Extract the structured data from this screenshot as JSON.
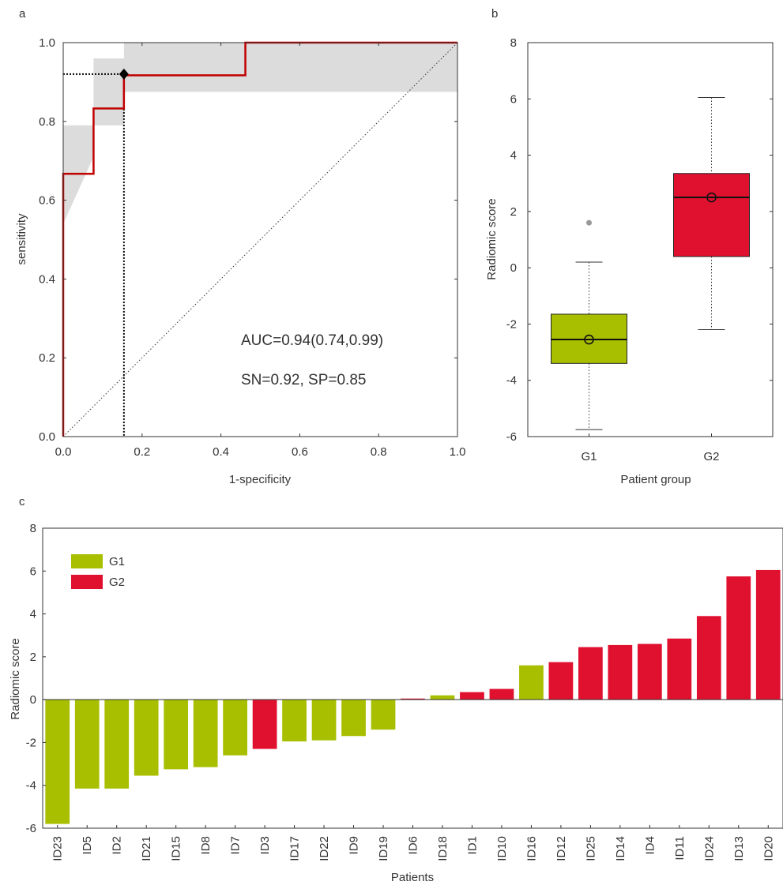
{
  "panel_labels": {
    "a": "a",
    "b": "b",
    "c": "c"
  },
  "colors": {
    "G1": "#a8bf00",
    "G2": "#e0102f",
    "roc": "#c00000",
    "ci_band": "#dcdcdc",
    "outlier": "#999999"
  },
  "chart_data": [
    {
      "type": "line",
      "panel": "a",
      "xlabel": "1-specificity",
      "ylabel": "sensitivity",
      "xlim": [
        0,
        1
      ],
      "ylim": [
        0,
        1
      ],
      "xticks": [
        "0.0",
        "0.2",
        "0.4",
        "0.6",
        "0.8",
        "1.0"
      ],
      "yticks": [
        "0.0",
        "0.2",
        "0.4",
        "0.6",
        "0.8",
        "1.0"
      ],
      "roc_curve": {
        "x": [
          0,
          0,
          0.077,
          0.077,
          0.154,
          0.154,
          0.462,
          0.462,
          1.0
        ],
        "y": [
          0,
          0.667,
          0.667,
          0.833,
          0.833,
          0.917,
          0.917,
          1.0,
          1.0
        ]
      },
      "ci_band": {
        "x": [
          0,
          0,
          0.077,
          0.077,
          0.154,
          0.154,
          0.154,
          0.462,
          0.462,
          1.0,
          1.0,
          0.154,
          0.154,
          0.077,
          0.077,
          0
        ],
        "y": [
          0,
          0.79,
          0.79,
          0.96,
          0.96,
          1.0,
          1.0,
          1.0,
          1.0,
          1.0,
          0.875,
          0.875,
          0.79,
          0.79,
          0.71,
          0.54
        ]
      },
      "operating_point": {
        "x": 0.154,
        "y": 0.92
      },
      "annotations": [
        "AUC=0.94(0.74,0.99)",
        "SN=0.92, SP=0.85"
      ]
    },
    {
      "type": "box",
      "panel": "b",
      "xlabel": "Patient group",
      "ylabel": "Radiomic score",
      "ylim": [
        -6,
        8
      ],
      "yticks": [
        "-6",
        "-4",
        "-2",
        "0",
        "2",
        "4",
        "6",
        "8"
      ],
      "groups": [
        {
          "name": "G1",
          "whisker_low": -5.75,
          "q1": -3.4,
          "median": -2.55,
          "q3": -1.65,
          "whisker_high": 0.2,
          "mean": -2.55,
          "outliers": [
            1.6
          ]
        },
        {
          "name": "G2",
          "whisker_low": -2.2,
          "q1": 0.4,
          "median": 2.5,
          "q3": 3.35,
          "whisker_high": 6.05,
          "mean": 2.5,
          "outliers": []
        }
      ]
    },
    {
      "type": "bar",
      "panel": "c",
      "xlabel": "Patients",
      "ylabel": "Radiomic score",
      "ylim": [
        -6,
        8
      ],
      "yticks": [
        "-6",
        "-4",
        "-2",
        "0",
        "2",
        "4",
        "6",
        "8"
      ],
      "legend": [
        "G1",
        "G2"
      ],
      "legend_position": "top-left",
      "categories": [
        "ID23",
        "ID5",
        "ID2",
        "ID21",
        "ID15",
        "ID8",
        "ID7",
        "ID3",
        "ID17",
        "ID22",
        "ID9",
        "ID19",
        "ID6",
        "ID18",
        "ID1",
        "ID10",
        "ID16",
        "ID12",
        "ID25",
        "ID14",
        "ID4",
        "ID11",
        "ID24",
        "ID13",
        "ID20"
      ],
      "values": [
        -5.8,
        -4.15,
        -4.15,
        -3.55,
        -3.25,
        -3.15,
        -2.6,
        -2.3,
        -1.95,
        -1.9,
        -1.7,
        -1.4,
        0.05,
        0.2,
        0.35,
        0.5,
        1.6,
        1.75,
        2.45,
        2.55,
        2.6,
        2.85,
        3.9,
        5.75,
        6.05
      ],
      "groups": [
        "G1",
        "G1",
        "G1",
        "G1",
        "G1",
        "G1",
        "G1",
        "G2",
        "G1",
        "G1",
        "G1",
        "G1",
        "G2",
        "G1",
        "G2",
        "G2",
        "G1",
        "G2",
        "G2",
        "G2",
        "G2",
        "G2",
        "G2",
        "G2",
        "G2"
      ]
    }
  ]
}
